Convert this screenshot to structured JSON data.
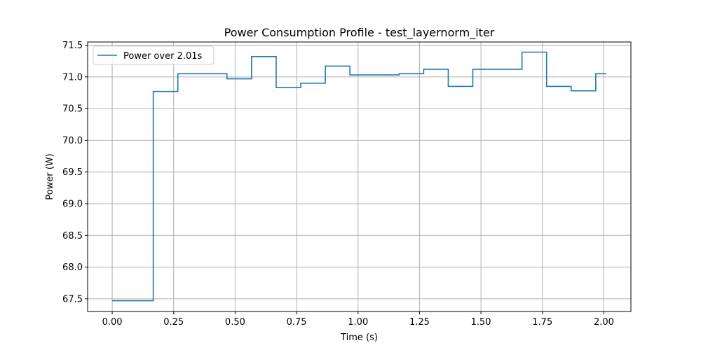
{
  "chart_data": {
    "type": "line",
    "title": "Power Consumption Profile - test_layernorm_iter",
    "xlabel": "Time (s)",
    "ylabel": "Power (W)",
    "xlim": [
      -0.1,
      2.11
    ],
    "ylim": [
      67.3,
      71.55
    ],
    "xticks": [
      0.0,
      0.25,
      0.5,
      0.75,
      1.0,
      1.25,
      1.5,
      1.75,
      2.0
    ],
    "xtick_labels": [
      "0.00",
      "0.25",
      "0.50",
      "0.75",
      "1.00",
      "1.25",
      "1.50",
      "1.75",
      "2.00"
    ],
    "yticks": [
      67.5,
      68.0,
      68.5,
      69.0,
      69.5,
      70.0,
      70.5,
      71.0,
      71.5
    ],
    "ytick_labels": [
      "67.5",
      "68.0",
      "68.5",
      "69.0",
      "69.5",
      "70.0",
      "70.5",
      "71.0",
      "71.5"
    ],
    "grid": true,
    "legend_position": "top-left",
    "step": "post",
    "series": [
      {
        "name": "Power over 2.01s",
        "color": "#1f77b4",
        "x": [
          0.0,
          0.167,
          0.267,
          0.467,
          0.567,
          0.667,
          0.767,
          0.867,
          0.967,
          1.167,
          1.267,
          1.367,
          1.467,
          1.667,
          1.767,
          1.867,
          1.967,
          2.01
        ],
        "y": [
          67.47,
          70.77,
          71.05,
          70.97,
          71.32,
          70.83,
          70.9,
          71.17,
          71.03,
          71.05,
          71.12,
          70.85,
          71.12,
          71.39,
          70.85,
          70.78,
          71.05,
          71.05
        ]
      }
    ]
  }
}
